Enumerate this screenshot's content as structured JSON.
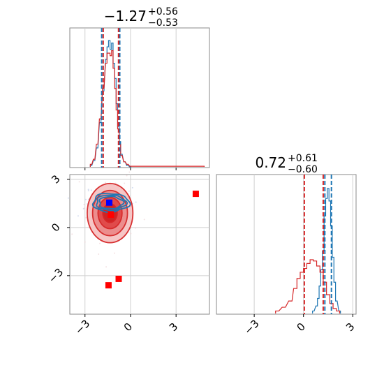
{
  "chart_data": [
    {
      "type": "histogram",
      "panel": "top-left marginal",
      "title": {
        "value": "−1.27",
        "plus": "+0.56",
        "minus": "−0.53"
      },
      "xlim": [
        -4.0,
        5.2
      ],
      "grid": true,
      "vlines": [
        {
          "x": -1.9,
          "color": "#1f77b4",
          "style": "dashed"
        },
        {
          "x": -1.8,
          "color": "#d62728",
          "style": "dashed"
        },
        {
          "x": -0.71,
          "color": "#1f77b4",
          "style": "dashed"
        },
        {
          "x": -0.79,
          "color": "#d62728",
          "style": "dashed"
        }
      ],
      "series": [
        {
          "color": "#1f77b4",
          "bins_x": [
            -2.6,
            -2.4,
            -2.2,
            -2.0,
            -1.8,
            -1.6,
            -1.5,
            -1.4,
            -1.3,
            -1.2,
            -1.1,
            -1.0,
            -0.9,
            -0.8,
            -0.7,
            -0.6,
            -0.4,
            -0.2,
            0.0
          ],
          "heights": [
            0.01,
            0.05,
            0.15,
            0.35,
            0.6,
            0.85,
            0.95,
            1.0,
            0.93,
            0.98,
            0.82,
            0.7,
            0.5,
            0.32,
            0.2,
            0.1,
            0.04,
            0.01,
            0.0
          ]
        },
        {
          "color": "#d62728",
          "bins_x": [
            -2.6,
            -2.4,
            -2.2,
            -2.0,
            -1.8,
            -1.6,
            -1.5,
            -1.4,
            -1.3,
            -1.2,
            -1.1,
            -1.0,
            -0.9,
            -0.8,
            -0.7,
            -0.6,
            -0.4,
            -0.2,
            0.0,
            0.6,
            4.8
          ],
          "heights": [
            0.02,
            0.06,
            0.18,
            0.38,
            0.62,
            0.82,
            0.9,
            0.9,
            0.88,
            0.92,
            0.78,
            0.62,
            0.45,
            0.3,
            0.18,
            0.09,
            0.04,
            0.02,
            0.005,
            0.005,
            0.005
          ]
        }
      ]
    },
    {
      "type": "contour",
      "panel": "bottom-left 2D",
      "xlim": [
        -4.0,
        5.2
      ],
      "ylim": [
        -5.4,
        3.3
      ],
      "xticks": [
        "−3",
        "0",
        "3"
      ],
      "xtick_values": [
        -3,
        0,
        3
      ],
      "yticks": [
        "3",
        "0",
        "−3"
      ],
      "ytick_values": [
        3,
        0,
        -3
      ],
      "grid": true,
      "contours": [
        {
          "color": "#1f77b4",
          "center": [
            -1.3,
            1.55
          ],
          "sigma": [
            1.15,
            0.55
          ]
        },
        {
          "color": "#d62728",
          "center": [
            -1.35,
            0.9
          ],
          "sigma": [
            1.1,
            1.35
          ]
        }
      ],
      "markers": [
        {
          "x": -1.4,
          "y": 1.55,
          "color": "#0000ff"
        },
        {
          "x": -1.3,
          "y": 0.8,
          "color": "#ff0000"
        },
        {
          "x": 4.3,
          "y": 2.1,
          "color": "#ff0000"
        },
        {
          "x": -0.78,
          "y": -3.2,
          "color": "#ff0000"
        },
        {
          "x": -1.45,
          "y": -3.6,
          "color": "#ff0000"
        }
      ]
    },
    {
      "type": "histogram",
      "panel": "bottom-right marginal",
      "title": {
        "value": "0.72",
        "plus": "+0.61",
        "minus": "−0.60"
      },
      "xlim": [
        -5.3,
        3.2
      ],
      "xticks": [
        "−3",
        "0",
        "3"
      ],
      "xtick_values": [
        -3,
        0,
        3
      ],
      "grid": true,
      "vlines": [
        {
          "x": 0.05,
          "color": "#d62728",
          "style": "dashed"
        },
        {
          "x": 1.2,
          "color": "#d62728",
          "style": "dashed"
        },
        {
          "x": 1.3,
          "color": "#1f77b4",
          "style": "dashed"
        },
        {
          "x": 1.7,
          "color": "#1f77b4",
          "style": "dashed"
        }
      ],
      "series": [
        {
          "color": "#1f77b4",
          "bins_x": [
            0.6,
            0.8,
            0.9,
            1.0,
            1.1,
            1.2,
            1.3,
            1.4,
            1.5,
            1.6,
            1.7,
            1.8,
            1.9,
            2.0,
            2.2
          ],
          "heights": [
            0.02,
            0.06,
            0.12,
            0.22,
            0.35,
            0.5,
            0.78,
            0.92,
            1.0,
            0.9,
            0.7,
            0.45,
            0.25,
            0.1,
            0.02
          ]
        },
        {
          "color": "#d62728",
          "bins_x": [
            -1.6,
            -1.2,
            -0.8,
            -0.5,
            -0.3,
            -0.1,
            0.1,
            0.3,
            0.5,
            0.7,
            0.9,
            1.1,
            1.3,
            1.5,
            1.7,
            1.9,
            2.1
          ],
          "heights": [
            0.02,
            0.05,
            0.1,
            0.2,
            0.28,
            0.33,
            0.36,
            0.4,
            0.43,
            0.42,
            0.38,
            0.33,
            0.25,
            0.15,
            0.08,
            0.04,
            0.02
          ]
        }
      ]
    }
  ]
}
